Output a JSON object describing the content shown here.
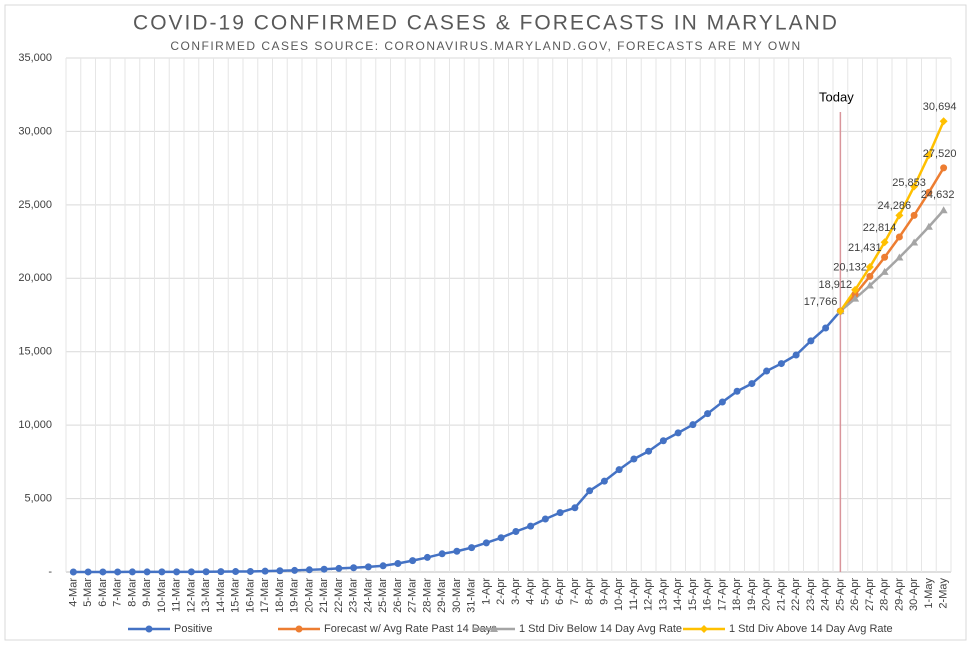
{
  "chart_data": {
    "type": "line",
    "title": "COVID-19 CONFIRMED CASES & FORECASTS IN MARYLAND",
    "subtitle": "CONFIRMED CASES SOURCE: CORONAVIRUS.MARYLAND.GOV, FORECASTS ARE MY OWN",
    "categories": [
      "4-Mar",
      "5-Mar",
      "6-Mar",
      "7-Mar",
      "8-Mar",
      "9-Mar",
      "10-Mar",
      "11-Mar",
      "12-Mar",
      "13-Mar",
      "14-Mar",
      "15-Mar",
      "16-Mar",
      "17-Mar",
      "18-Mar",
      "19-Mar",
      "20-Mar",
      "21-Mar",
      "22-Mar",
      "23-Mar",
      "24-Mar",
      "25-Mar",
      "26-Mar",
      "27-Mar",
      "28-Mar",
      "29-Mar",
      "30-Mar",
      "31-Mar",
      "1-Apr",
      "2-Apr",
      "3-Apr",
      "4-Apr",
      "5-Apr",
      "6-Apr",
      "7-Apr",
      "8-Apr",
      "9-Apr",
      "10-Apr",
      "11-Apr",
      "12-Apr",
      "13-Apr",
      "14-Apr",
      "15-Apr",
      "16-Apr",
      "17-Apr",
      "18-Apr",
      "19-Apr",
      "20-Apr",
      "21-Apr",
      "22-Apr",
      "23-Apr",
      "24-Apr",
      "25-Apr",
      "26-Apr",
      "27-Apr",
      "28-Apr",
      "29-Apr",
      "30-Apr",
      "1-May",
      "2-May"
    ],
    "series": [
      {
        "name": "Positive",
        "color": "#4472c4",
        "marker": "circle",
        "values": [
          0,
          3,
          3,
          3,
          5,
          5,
          8,
          9,
          12,
          17,
          26,
          31,
          37,
          57,
          85,
          107,
          149,
          190,
          244,
          288,
          349,
          423,
          580,
          774,
          992,
          1239,
          1413,
          1660,
          1985,
          2331,
          2758,
          3125,
          3609,
          4045,
          4371,
          5529,
          6185,
          6968,
          7694,
          8225,
          8936,
          9472,
          10032,
          10784,
          11572,
          12308,
          12830,
          13684,
          14193,
          14775,
          15737,
          16616,
          17766,
          null,
          null,
          null,
          null,
          null,
          null,
          null
        ]
      },
      {
        "name": "Forecast w/ Avg Rate Past 14 Days",
        "color": "#ed7d31",
        "marker": "circle",
        "values": [
          null,
          null,
          null,
          null,
          null,
          null,
          null,
          null,
          null,
          null,
          null,
          null,
          null,
          null,
          null,
          null,
          null,
          null,
          null,
          null,
          null,
          null,
          null,
          null,
          null,
          null,
          null,
          null,
          null,
          null,
          null,
          null,
          null,
          null,
          null,
          null,
          null,
          null,
          null,
          null,
          null,
          null,
          null,
          null,
          null,
          null,
          null,
          null,
          null,
          null,
          null,
          null,
          17766,
          18912,
          20132,
          21431,
          22814,
          24286,
          25853,
          27520
        ],
        "value_labels": [
          null,
          null,
          null,
          null,
          null,
          null,
          null,
          null,
          null,
          null,
          null,
          null,
          null,
          null,
          null,
          null,
          null,
          null,
          null,
          null,
          null,
          null,
          null,
          null,
          null,
          null,
          null,
          null,
          null,
          null,
          null,
          null,
          null,
          null,
          null,
          null,
          null,
          null,
          null,
          null,
          null,
          null,
          null,
          null,
          null,
          null,
          null,
          null,
          null,
          null,
          null,
          null,
          "17,766",
          "18,912",
          "20,132",
          "21,431",
          "22,814",
          "24,286",
          "25,853",
          "27,520"
        ]
      },
      {
        "name": "1 Std Div Below 14 Day Avg Rate",
        "color": "#a5a5a5",
        "marker": "triangle",
        "values": [
          null,
          null,
          null,
          null,
          null,
          null,
          null,
          null,
          null,
          null,
          null,
          null,
          null,
          null,
          null,
          null,
          null,
          null,
          null,
          null,
          null,
          null,
          null,
          null,
          null,
          null,
          null,
          null,
          null,
          null,
          null,
          null,
          null,
          null,
          null,
          null,
          null,
          null,
          null,
          null,
          null,
          null,
          null,
          null,
          null,
          null,
          null,
          null,
          null,
          null,
          null,
          null,
          17766,
          18615,
          19505,
          20437,
          21414,
          22437,
          23510,
          24632
        ],
        "value_labels": [
          null,
          null,
          null,
          null,
          null,
          null,
          null,
          null,
          null,
          null,
          null,
          null,
          null,
          null,
          null,
          null,
          null,
          null,
          null,
          null,
          null,
          null,
          null,
          null,
          null,
          null,
          null,
          null,
          null,
          null,
          null,
          null,
          null,
          null,
          null,
          null,
          null,
          null,
          null,
          null,
          null,
          null,
          null,
          null,
          null,
          null,
          null,
          null,
          null,
          null,
          null,
          null,
          null,
          null,
          null,
          null,
          null,
          null,
          null,
          "24,632"
        ]
      },
      {
        "name": "1 Std Div Above 14 Day Avg Rate",
        "color": "#ffc000",
        "marker": "diamond",
        "values": [
          null,
          null,
          null,
          null,
          null,
          null,
          null,
          null,
          null,
          null,
          null,
          null,
          null,
          null,
          null,
          null,
          null,
          null,
          null,
          null,
          null,
          null,
          null,
          null,
          null,
          null,
          null,
          null,
          null,
          null,
          null,
          null,
          null,
          null,
          null,
          null,
          null,
          null,
          null,
          null,
          null,
          null,
          null,
          null,
          null,
          null,
          null,
          null,
          null,
          null,
          null,
          null,
          17766,
          19209,
          20769,
          22456,
          24280,
          26252,
          28384,
          30694
        ],
        "value_labels": [
          null,
          null,
          null,
          null,
          null,
          null,
          null,
          null,
          null,
          null,
          null,
          null,
          null,
          null,
          null,
          null,
          null,
          null,
          null,
          null,
          null,
          null,
          null,
          null,
          null,
          null,
          null,
          null,
          null,
          null,
          null,
          null,
          null,
          null,
          null,
          null,
          null,
          null,
          null,
          null,
          null,
          null,
          null,
          null,
          null,
          null,
          null,
          null,
          null,
          null,
          null,
          null,
          null,
          null,
          null,
          null,
          null,
          null,
          null,
          "30,694"
        ]
      }
    ],
    "ylim": [
      0,
      35000
    ],
    "yticks": [
      {
        "value": 0,
        "label": "-"
      },
      {
        "value": 5000,
        "label": "5,000"
      },
      {
        "value": 10000,
        "label": "10,000"
      },
      {
        "value": 15000,
        "label": "15,000"
      },
      {
        "value": 20000,
        "label": "20,000"
      },
      {
        "value": 25000,
        "label": "25,000"
      },
      {
        "value": 30000,
        "label": "30,000"
      },
      {
        "value": 35000,
        "label": "35,000"
      }
    ],
    "grid": true,
    "legend": "bottom",
    "annotations": [
      {
        "text": "Today",
        "x": "25-Apr",
        "color": "#d9959b"
      }
    ]
  }
}
